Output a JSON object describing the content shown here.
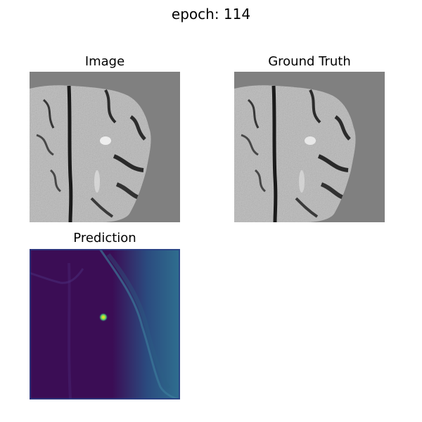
{
  "figure": {
    "title": "epoch: 114"
  },
  "panels": {
    "image": {
      "title": "Image"
    },
    "ground_truth": {
      "title": "Ground Truth"
    },
    "prediction": {
      "title": "Prediction"
    }
  },
  "colors": {
    "background_gray": "#808080",
    "brain_light": "#b8b8b8",
    "brain_dark": "#1a1a1a",
    "prediction_dark": "#3b0d55",
    "prediction_edge_teal": "#2f6f8f",
    "prediction_hotspot": "#d8e22c"
  }
}
